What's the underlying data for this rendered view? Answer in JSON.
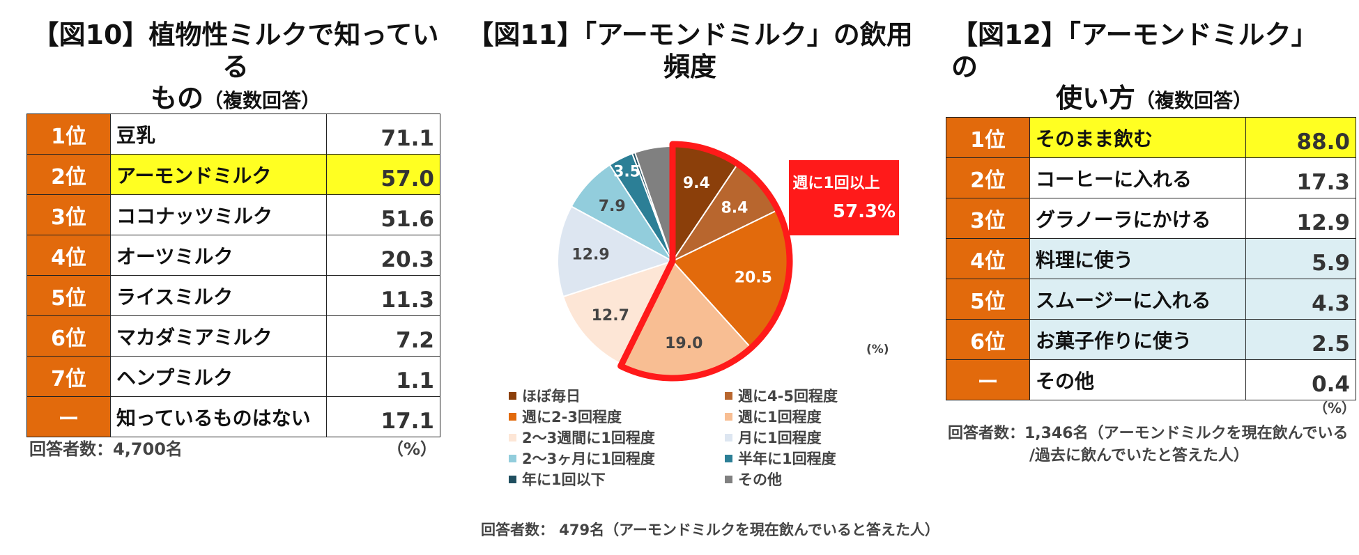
{
  "fig10": {
    "title_line1": "【図10】植物性ミルクで知っている",
    "title_line2": "もの",
    "title_sub": "（複数回答）",
    "rows": [
      {
        "rank": "1位",
        "name": "豆乳",
        "value": "71.1",
        "highlight": false
      },
      {
        "rank": "2位",
        "name": "アーモンドミルク",
        "value": "57.0",
        "highlight": true
      },
      {
        "rank": "3位",
        "name": "ココナッツミルク",
        "value": "51.6",
        "highlight": false
      },
      {
        "rank": "4位",
        "name": "オーツミルク",
        "value": "20.3",
        "highlight": false
      },
      {
        "rank": "5位",
        "name": "ライスミルク",
        "value": "11.3",
        "highlight": false
      },
      {
        "rank": "6位",
        "name": "マカダミアミルク",
        "value": "7.2",
        "highlight": false
      },
      {
        "rank": "7位",
        "name": "ヘンプミルク",
        "value": "1.1",
        "highlight": false
      },
      {
        "rank": "ー",
        "name": "知っているものはない",
        "value": "17.1",
        "highlight": false
      }
    ],
    "respondents": "回答者数：4,700名",
    "unit": "（%）"
  },
  "fig11": {
    "title": "【図11】「アーモンドミルク」の飲用頻度",
    "callout_label": "週に1回以上",
    "callout_value": "57.3%",
    "unit": "(%)",
    "respondents": "回答者数： 479名（アーモンドミルクを現在飲んでいると答えた人）"
  },
  "fig12": {
    "title_line1": "【図12】「アーモンドミルク」の",
    "title_line2": "使い方",
    "title_sub": "（複数回答）",
    "rows": [
      {
        "rank": "1位",
        "name": "そのまま飲む",
        "value": "88.0",
        "style": "hl"
      },
      {
        "rank": "2位",
        "name": "コーヒーに入れる",
        "value": "17.3",
        "style": ""
      },
      {
        "rank": "3位",
        "name": "グラノーラにかける",
        "value": "12.9",
        "style": ""
      },
      {
        "rank": "4位",
        "name": "料理に使う",
        "value": "5.9",
        "style": "blue"
      },
      {
        "rank": "5位",
        "name": "スムージーに入れる",
        "value": "4.3",
        "style": "blue"
      },
      {
        "rank": "6位",
        "name": "お菓子作りに使う",
        "value": "2.5",
        "style": "blue"
      },
      {
        "rank": "ー",
        "name": "その他",
        "value": "0.4",
        "style": ""
      }
    ],
    "unit": "（%）",
    "respondents_line1": "回答者数：1,346名（アーモンドミルクを現在飲んでいる",
    "respondents_line2": "/過去に飲んでいたと答えた人）"
  },
  "chart_data": {
    "type": "pie",
    "title": "【図11】「アーモンドミルク」の飲用頻度",
    "unit": "%",
    "slices": [
      {
        "label": "ほぼ毎日",
        "value": 9.4,
        "color": "#8B3F0A",
        "text_color": "#ffffff",
        "highlight": true
      },
      {
        "label": "週に4-5回程度",
        "value": 8.4,
        "color": "#B8662E",
        "text_color": "#ffffff",
        "highlight": true
      },
      {
        "label": "週に2-3回程度",
        "value": 20.5,
        "color": "#E26A0C",
        "text_color": "#ffffff",
        "highlight": true
      },
      {
        "label": "週に1回程度",
        "value": 19.0,
        "color": "#F8BE93",
        "text_color": "#444444",
        "highlight": true
      },
      {
        "label": "2～3週間に1回程度",
        "value": 12.7,
        "color": "#FDE6D6",
        "text_color": "#444444",
        "highlight": false
      },
      {
        "label": "月に1回程度",
        "value": 12.9,
        "color": "#DDE6F1",
        "text_color": "#444444",
        "highlight": false
      },
      {
        "label": "2～3ヶ月に1回程度",
        "value": 7.9,
        "color": "#92CDDC",
        "text_color": "#444444",
        "highlight": false
      },
      {
        "label": "半年に1回程度",
        "value": 3.5,
        "color": "#2C7F96",
        "text_color": "#ffffff",
        "highlight": false
      },
      {
        "label": "年に1回以下",
        "value": 0.4,
        "color": "#1F4E5F",
        "text_color": "#ffffff",
        "highlight": false
      },
      {
        "label": "その他",
        "value": 5.3,
        "color": "#808080",
        "text_color": "#ffffff",
        "highlight": false
      }
    ],
    "label_visible": [
      true,
      true,
      true,
      true,
      true,
      true,
      true,
      true,
      false,
      false
    ],
    "legend_order": [
      "ほぼ毎日",
      "週に4-5回程度",
      "週に2-3回程度",
      "週に1回程度",
      "2～3週間に1回程度",
      "月に1回程度",
      "2～3ヶ月に1回程度",
      "半年に1回程度",
      "年に1回以下",
      "その他"
    ],
    "highlight_total": "57.3%",
    "highlight_color": "#FF1A1A"
  }
}
